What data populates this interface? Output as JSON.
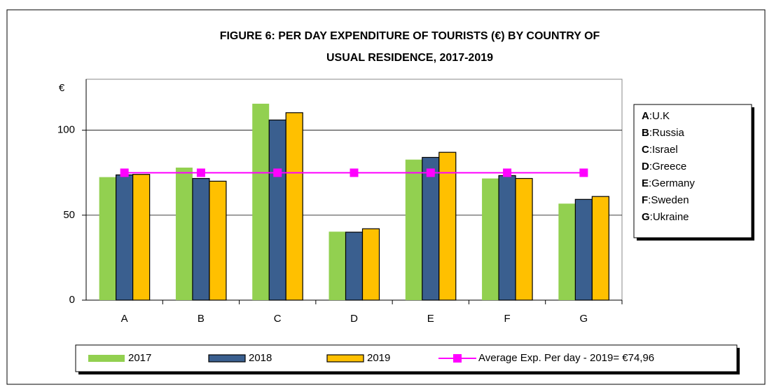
{
  "chart_data": {
    "type": "bar",
    "title_lines": [
      "FIGURE  6:  PER DAY EXPENDITURE OF TOURISTS (€) BY COUNTRY OF",
      "USUAL RESIDENCE,  2017-2019"
    ],
    "y_axis_label": "€",
    "categories": [
      "A",
      "B",
      "C",
      "D",
      "E",
      "F",
      "G"
    ],
    "series": [
      {
        "name": "2017",
        "color": "#92d050",
        "values": [
          72.4,
          78,
          115.6,
          40.3,
          82.7,
          71.6,
          56.8
        ]
      },
      {
        "name": "2018",
        "color": "#3a5f8f",
        "values": [
          73.7,
          71.6,
          106,
          40,
          84,
          73.3,
          59.3
        ]
      },
      {
        "name": "2019",
        "color": "#ffc000",
        "values": [
          74,
          70,
          110.3,
          42,
          87,
          71.6,
          61
        ]
      },
      {
        "name": "Average Exp. Per day - 2019= €74,96",
        "type": "line",
        "color": "#ff00ff",
        "values": [
          74.96,
          74.96,
          74.96,
          74.96,
          74.96,
          74.96,
          74.96
        ]
      }
    ],
    "ylim": [
      0,
      130
    ],
    "yticks": [
      0,
      50,
      100
    ],
    "grid": true,
    "key_box": [
      {
        "key": "A",
        "label": ":U.K"
      },
      {
        "key": "B",
        "label": ":Russia"
      },
      {
        "key": "C",
        "label": ":Israel"
      },
      {
        "key": "D",
        "label": ":Greece"
      },
      {
        "key": "E",
        "label": ":Germany"
      },
      {
        "key": "F",
        "label": ":Sweden"
      },
      {
        "key": "G",
        "label": ":Ukraine"
      }
    ]
  }
}
